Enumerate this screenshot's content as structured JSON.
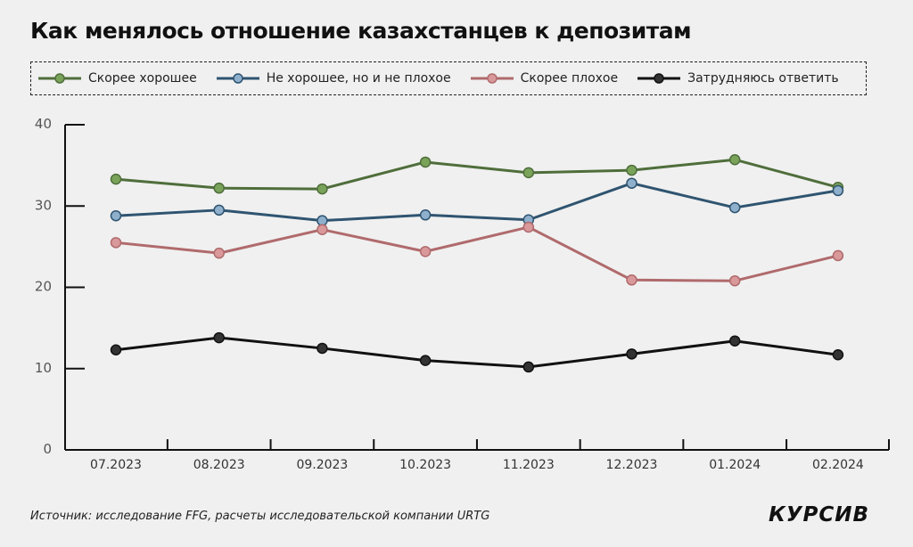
{
  "chart_data": {
    "type": "line",
    "title": "Как менялось отношение казахстанцев к депозитам",
    "categories": [
      "07.2023",
      "08.2023",
      "09.2023",
      "10.2023",
      "11.2023",
      "12.2023",
      "01.2024",
      "02.2024"
    ],
    "ylim": [
      0,
      40
    ],
    "yticks": [
      0,
      10,
      20,
      30,
      40
    ],
    "grid": false,
    "legend_position": "top",
    "series": [
      {
        "name": "Скорее хорошее",
        "color": "#4f6e3b",
        "marker": "#7aa35a",
        "values": [
          33.3,
          32.2,
          32.1,
          35.4,
          34.1,
          34.4,
          35.7,
          32.3
        ]
      },
      {
        "name": "Не хорошее, но и не плохое",
        "color": "#2f5470",
        "marker": "#8fb0cc",
        "values": [
          28.8,
          29.5,
          28.2,
          28.9,
          28.3,
          32.8,
          29.8,
          31.9
        ]
      },
      {
        "name": "Скорее плохое",
        "color": "#b06a6c",
        "marker": "#d9999b",
        "values": [
          25.5,
          24.2,
          27.1,
          24.4,
          27.4,
          20.9,
          20.8,
          23.9
        ]
      },
      {
        "name": "Затрудняюсь ответить",
        "color": "#111111",
        "marker": "#333333",
        "values": [
          12.3,
          13.8,
          12.5,
          11.0,
          10.2,
          11.8,
          13.4,
          11.7
        ]
      }
    ]
  },
  "footer": {
    "source": "Источник: исследование FFG, расчеты исследовательской компании URTG",
    "logo": "КУРСИВ"
  }
}
